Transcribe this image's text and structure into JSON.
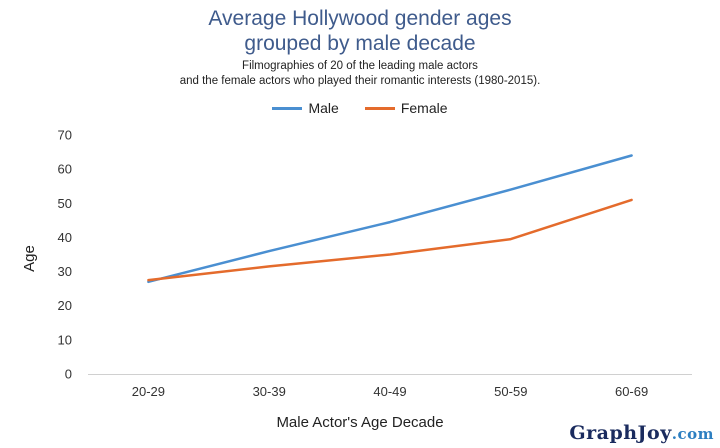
{
  "chart_data": {
    "type": "line",
    "title": [
      "Average Hollywood gender ages",
      "grouped by male decade"
    ],
    "subtitle": [
      "Filmographies of 20 of the leading male actors",
      "and the female actors who played their romantic interests (1980-2015)."
    ],
    "xlabel": "Male Actor's Age Decade",
    "ylabel": "Age",
    "categories": [
      "20-29",
      "30-39",
      "40-49",
      "50-59",
      "60-69"
    ],
    "yticks": [
      "0",
      "10",
      "20",
      "30",
      "40",
      "50",
      "60",
      "70"
    ],
    "ylim": [
      0,
      70
    ],
    "grid": "none",
    "legend_position": "top",
    "series": [
      {
        "name": "Male",
        "color": "#4a8fd1",
        "values": [
          27,
          36,
          44.5,
          54,
          64
        ]
      },
      {
        "name": "Female",
        "color": "#e46b2c",
        "values": [
          27.5,
          31.5,
          35,
          39.5,
          51
        ]
      }
    ]
  },
  "watermark": {
    "brand": "GraphJoy",
    "suffix": ".com"
  }
}
